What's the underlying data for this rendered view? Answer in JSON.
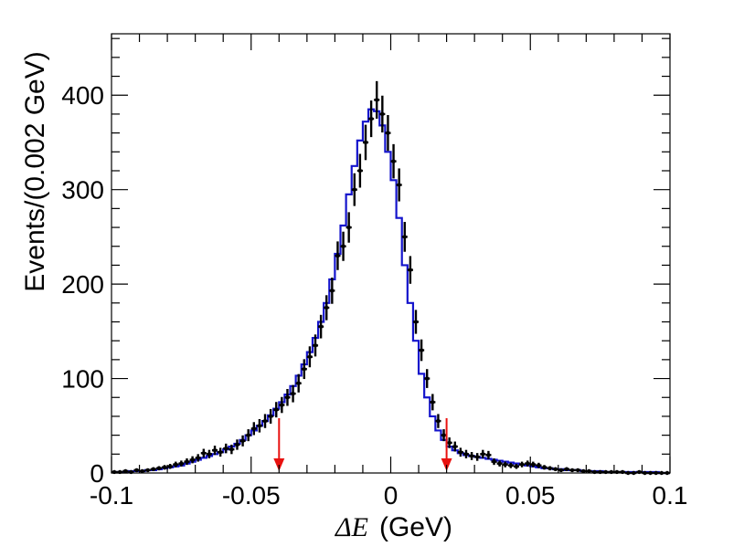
{
  "chart_data": {
    "type": "histogram",
    "xlabel_symbol": "ΔE",
    "xlabel_unit": "(GeV)",
    "ylabel": "Events/(0.002 GeV)",
    "xlim": [
      -0.1,
      0.1
    ],
    "ylim": [
      0,
      465
    ],
    "x_ticks": [
      -0.1,
      -0.05,
      0,
      0.05,
      0.1
    ],
    "x_tick_labels": [
      "-0.1",
      "-0.05",
      "0",
      "0.05",
      "0.1"
    ],
    "y_ticks": [
      0,
      100,
      200,
      300,
      400
    ],
    "y_tick_labels": [
      "0",
      "100",
      "200",
      "300",
      "400"
    ],
    "bin_width": 0.002,
    "bin_start": -0.1,
    "data_points": [
      [
        -0.099,
        1
      ],
      [
        -0.097,
        1
      ],
      [
        -0.095,
        2
      ],
      [
        -0.093,
        1
      ],
      [
        -0.091,
        3
      ],
      [
        -0.089,
        2
      ],
      [
        -0.087,
        3
      ],
      [
        -0.085,
        4
      ],
      [
        -0.083,
        5
      ],
      [
        -0.081,
        6
      ],
      [
        -0.079,
        7
      ],
      [
        -0.077,
        9
      ],
      [
        -0.075,
        10
      ],
      [
        -0.073,
        12
      ],
      [
        -0.071,
        14
      ],
      [
        -0.069,
        16
      ],
      [
        -0.067,
        21
      ],
      [
        -0.065,
        20
      ],
      [
        -0.063,
        24
      ],
      [
        -0.061,
        22
      ],
      [
        -0.059,
        26
      ],
      [
        -0.057,
        25
      ],
      [
        -0.055,
        30
      ],
      [
        -0.053,
        34
      ],
      [
        -0.051,
        40
      ],
      [
        -0.049,
        47
      ],
      [
        -0.047,
        50
      ],
      [
        -0.045,
        55
      ],
      [
        -0.043,
        60
      ],
      [
        -0.041,
        67
      ],
      [
        -0.039,
        72
      ],
      [
        -0.037,
        80
      ],
      [
        -0.035,
        84
      ],
      [
        -0.033,
        95
      ],
      [
        -0.031,
        110
      ],
      [
        -0.029,
        123
      ],
      [
        -0.027,
        135
      ],
      [
        -0.025,
        155
      ],
      [
        -0.023,
        175
      ],
      [
        -0.021,
        193
      ],
      [
        -0.019,
        230
      ],
      [
        -0.017,
        240
      ],
      [
        -0.015,
        260
      ],
      [
        -0.013,
        300
      ],
      [
        -0.011,
        320
      ],
      [
        -0.009,
        350
      ],
      [
        -0.007,
        375
      ],
      [
        -0.005,
        395
      ],
      [
        -0.003,
        380
      ],
      [
        -0.001,
        360
      ],
      [
        0.001,
        330
      ],
      [
        0.003,
        305
      ],
      [
        0.005,
        250
      ],
      [
        0.007,
        215
      ],
      [
        0.009,
        160
      ],
      [
        0.011,
        130
      ],
      [
        0.013,
        100
      ],
      [
        0.015,
        75
      ],
      [
        0.017,
        55
      ],
      [
        0.019,
        40
      ],
      [
        0.021,
        32
      ],
      [
        0.023,
        28
      ],
      [
        0.025,
        22
      ],
      [
        0.027,
        20
      ],
      [
        0.029,
        18
      ],
      [
        0.031,
        17
      ],
      [
        0.033,
        20
      ],
      [
        0.035,
        19
      ],
      [
        0.037,
        12
      ],
      [
        0.039,
        10
      ],
      [
        0.041,
        9
      ],
      [
        0.043,
        8
      ],
      [
        0.045,
        7
      ],
      [
        0.047,
        9
      ],
      [
        0.049,
        10
      ],
      [
        0.051,
        9
      ],
      [
        0.053,
        8
      ],
      [
        0.055,
        6
      ],
      [
        0.057,
        5
      ],
      [
        0.059,
        4
      ],
      [
        0.061,
        3
      ],
      [
        0.063,
        4
      ],
      [
        0.065,
        3
      ],
      [
        0.067,
        3
      ],
      [
        0.069,
        2
      ],
      [
        0.071,
        2
      ],
      [
        0.073,
        1
      ],
      [
        0.075,
        1
      ],
      [
        0.077,
        1
      ],
      [
        0.079,
        1
      ],
      [
        0.081,
        1
      ],
      [
        0.083,
        1
      ],
      [
        0.085,
        0
      ],
      [
        0.087,
        0
      ],
      [
        0.089,
        1
      ],
      [
        0.091,
        0
      ],
      [
        0.093,
        0
      ],
      [
        0.095,
        0
      ],
      [
        0.097,
        0
      ],
      [
        0.099,
        0
      ]
    ],
    "fit_histogram": [
      1,
      1,
      1,
      2,
      2,
      2,
      3,
      3,
      4,
      5,
      6,
      7,
      8,
      10,
      12,
      14,
      16,
      18,
      20,
      22,
      25,
      28,
      31,
      35,
      40,
      45,
      50,
      55,
      61,
      68,
      75,
      83,
      92,
      103,
      115,
      128,
      143,
      160,
      180,
      205,
      232,
      262,
      295,
      325,
      352,
      372,
      385,
      383,
      368,
      340,
      310,
      270,
      220,
      180,
      140,
      105,
      80,
      60,
      45,
      35,
      28,
      24,
      21,
      19,
      18,
      17,
      16,
      15,
      14,
      13,
      12,
      11,
      10,
      9,
      8,
      7,
      6,
      5,
      5,
      4,
      4,
      3,
      3,
      3,
      2,
      2,
      2,
      2,
      1,
      1,
      1,
      1,
      1,
      1,
      1,
      1,
      1,
      1,
      0,
      0
    ],
    "arrows": [
      {
        "x": -0.04,
        "y_top": 58
      },
      {
        "x": 0.02,
        "y_top": 58
      }
    ],
    "colors": {
      "data": "#000000",
      "fit": "#1414cc",
      "arrow": "#e8110f",
      "frame": "#000000"
    }
  }
}
